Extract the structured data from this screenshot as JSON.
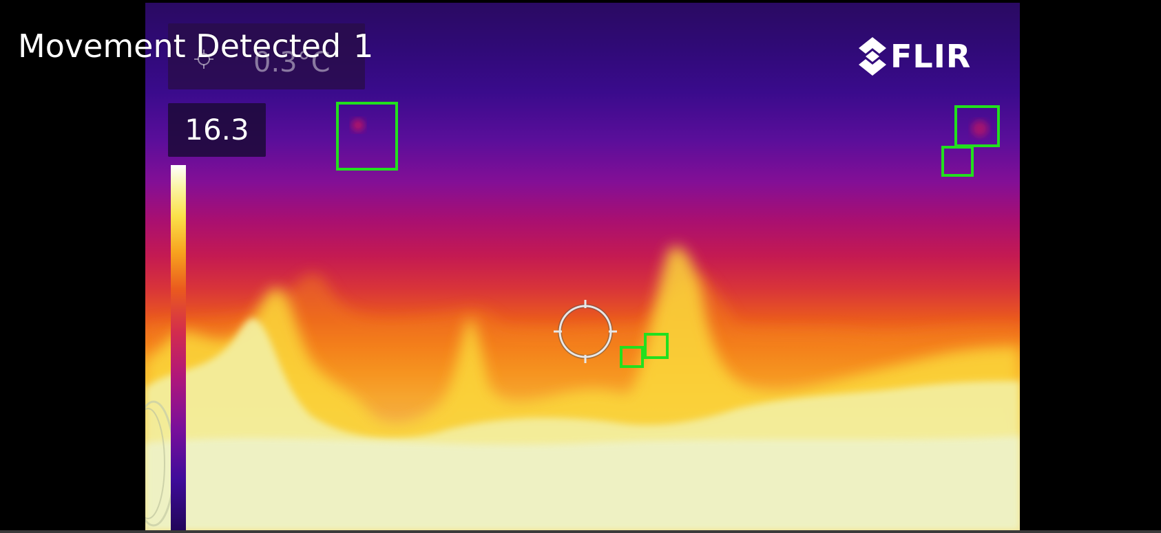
{
  "overlay": {
    "movement_label": "Movement Detected",
    "movement_count": "1"
  },
  "camera": {
    "brand": "FLIR",
    "spot_readout": "0.3°C",
    "max_temp": "16.3"
  },
  "colors": {
    "detection_box": "#22e01e",
    "palette": "iron"
  },
  "icons": {
    "logo": "flir-logo-icon",
    "crosshair": "spot-meter-crosshair-icon",
    "spot_small": "spot-meter-small-icon"
  },
  "detections": {
    "count_shown": 5
  }
}
